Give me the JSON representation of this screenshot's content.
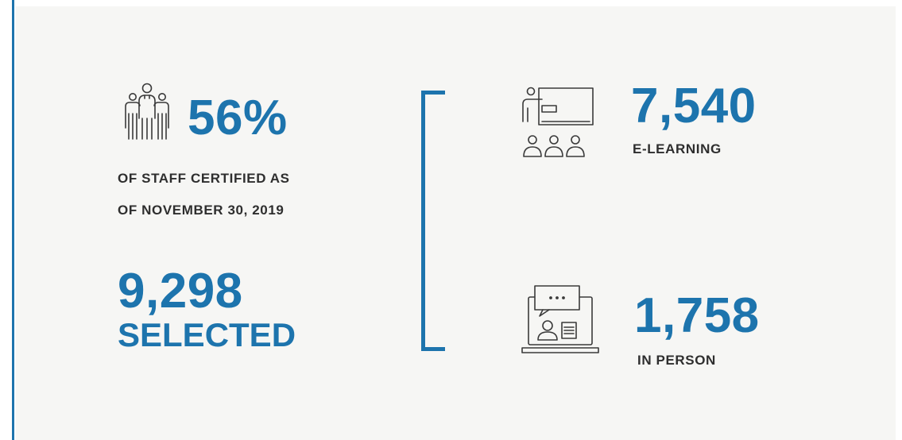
{
  "colors": {
    "accent": "#1d74ad",
    "text": "#2e2e2e",
    "panel": "#f6f6f4"
  },
  "certified": {
    "icon": "staff-group-icon",
    "percent": "56%",
    "caption_line1": "OF STAFF CERTIFIED AS",
    "caption_line2": "OF NOVEMBER 30, 2019"
  },
  "selected": {
    "value": "9,298",
    "label": "SELECTED"
  },
  "elearning": {
    "icon": "classroom-presentation-icon",
    "value": "7,540",
    "label": "E-LEARNING"
  },
  "in_person": {
    "icon": "laptop-chat-icon",
    "value": "1,758",
    "label": "IN PERSON"
  }
}
